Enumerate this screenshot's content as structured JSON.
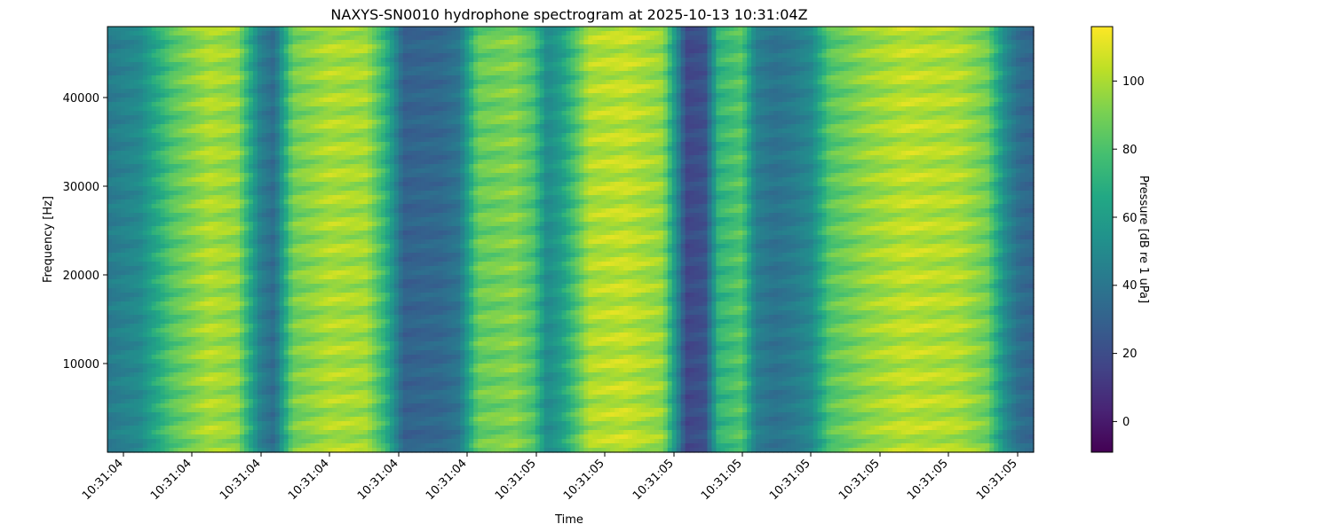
{
  "chart_data": {
    "type": "heatmap",
    "title": "NAXYS-SN0010 hydrophone spectrogram at 2025-10-13 10:31:04Z",
    "xlabel": "Time",
    "ylabel": "Frequency [Hz]",
    "x_tick_labels": [
      "10:31:04",
      "10:31:04",
      "10:31:04",
      "10:31:04",
      "10:31:04",
      "10:31:04",
      "10:31:05",
      "10:31:05",
      "10:31:05",
      "10:31:05",
      "10:31:05",
      "10:31:05",
      "10:31:05",
      "10:31:05"
    ],
    "y_ticks": [
      10000,
      20000,
      30000,
      40000
    ],
    "y_tick_labels": [
      "10000",
      "20000",
      "30000",
      "40000"
    ],
    "ylim": [
      0,
      48000
    ],
    "colorbar": {
      "label": "Pressure [dB re 1 uPa]",
      "colormap": "viridis",
      "range": [
        -9,
        116
      ],
      "ticks": [
        0,
        20,
        40,
        60,
        80,
        100
      ],
      "tick_labels": [
        "0",
        "20",
        "40",
        "60",
        "80",
        "100"
      ]
    },
    "time_profile_db": [
      {
        "x": 0.0,
        "db": 42
      },
      {
        "x": 0.035,
        "db": 50
      },
      {
        "x": 0.07,
        "db": 82
      },
      {
        "x": 0.11,
        "db": 100
      },
      {
        "x": 0.14,
        "db": 95
      },
      {
        "x": 0.165,
        "db": 45
      },
      {
        "x": 0.18,
        "db": 35
      },
      {
        "x": 0.2,
        "db": 88
      },
      {
        "x": 0.24,
        "db": 100
      },
      {
        "x": 0.28,
        "db": 98
      },
      {
        "x": 0.3,
        "db": 72
      },
      {
        "x": 0.32,
        "db": 30
      },
      {
        "x": 0.36,
        "db": 33
      },
      {
        "x": 0.38,
        "db": 40
      },
      {
        "x": 0.4,
        "db": 86
      },
      {
        "x": 0.44,
        "db": 92
      },
      {
        "x": 0.46,
        "db": 80
      },
      {
        "x": 0.475,
        "db": 50
      },
      {
        "x": 0.49,
        "db": 60
      },
      {
        "x": 0.52,
        "db": 100
      },
      {
        "x": 0.56,
        "db": 104
      },
      {
        "x": 0.6,
        "db": 95
      },
      {
        "x": 0.615,
        "db": 50
      },
      {
        "x": 0.625,
        "db": 18
      },
      {
        "x": 0.645,
        "db": 22
      },
      {
        "x": 0.66,
        "db": 72
      },
      {
        "x": 0.685,
        "db": 82
      },
      {
        "x": 0.7,
        "db": 45
      },
      {
        "x": 0.72,
        "db": 38
      },
      {
        "x": 0.74,
        "db": 42
      },
      {
        "x": 0.76,
        "db": 50
      },
      {
        "x": 0.78,
        "db": 82
      },
      {
        "x": 0.82,
        "db": 95
      },
      {
        "x": 0.86,
        "db": 103
      },
      {
        "x": 0.92,
        "db": 100
      },
      {
        "x": 0.95,
        "db": 88
      },
      {
        "x": 0.97,
        "db": 50
      },
      {
        "x": 0.985,
        "db": 35
      },
      {
        "x": 1.0,
        "db": 32
      }
    ]
  }
}
